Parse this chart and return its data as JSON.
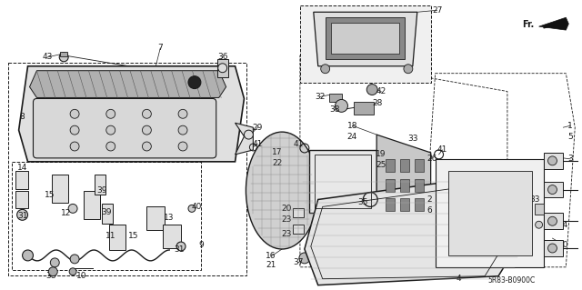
{
  "bg_color": "#ffffff",
  "line_color": "#1a1a1a",
  "diagram_code": "5R83-B0900C",
  "figsize": [
    6.4,
    3.19
  ],
  "dpi": 100,
  "gray_fill": "#e0e0e0",
  "light_fill": "#f0f0f0",
  "dark_fill": "#b0b0b0",
  "hatch_color": "#888888"
}
